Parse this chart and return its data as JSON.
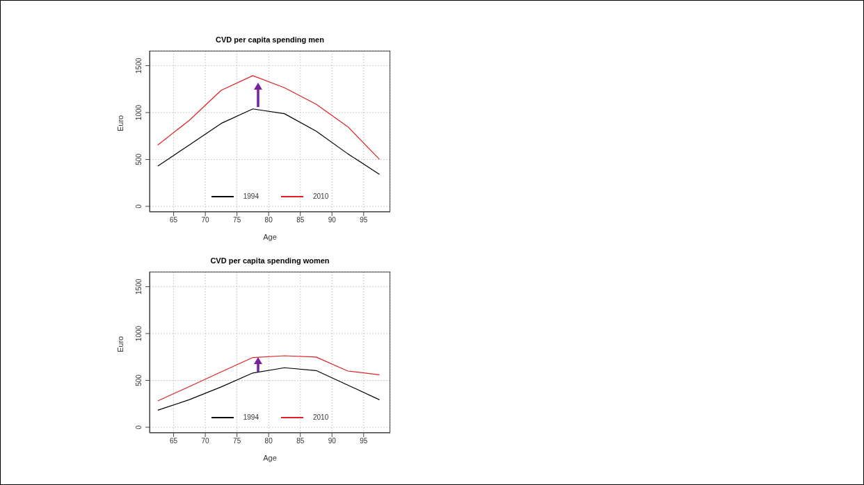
{
  "chart_data": [
    {
      "type": "line",
      "title": "CVD per capita spending men",
      "xlabel": "Age",
      "ylabel": "Euro",
      "x": [
        62.5,
        67.5,
        72.5,
        77.5,
        82.5,
        87.5,
        92.5,
        97.5
      ],
      "series": [
        {
          "name": "1994",
          "color": "#000000",
          "values": [
            430,
            655,
            884,
            1039,
            988,
            802,
            560,
            341
          ]
        },
        {
          "name": "2010",
          "color": "#df2020",
          "values": [
            654,
            919,
            1237,
            1394,
            1265,
            1089,
            849,
            501
          ]
        }
      ],
      "xlim": [
        61.2,
        99.2
      ],
      "xticks": [
        65,
        70,
        75,
        80,
        85,
        90,
        95
      ],
      "ylim": [
        -60,
        1660
      ],
      "yticks": [
        0,
        500,
        1000,
        1500
      ],
      "grid": true,
      "legend": "bottom",
      "marker": "none",
      "line_style": "solid"
    },
    {
      "type": "line",
      "title": "CVD per capita spending women",
      "xlabel": "Age",
      "ylabel": "Euro",
      "x": [
        62.5,
        67.5,
        72.5,
        77.5,
        82.5,
        87.5,
        92.5,
        97.5
      ],
      "series": [
        {
          "name": "1994",
          "color": "#000000",
          "values": [
            182,
            295,
            430,
            579,
            635,
            605,
            450,
            293
          ]
        },
        {
          "name": "2010",
          "color": "#df2020",
          "values": [
            281,
            435,
            590,
            744,
            763,
            749,
            600,
            560
          ]
        }
      ],
      "xlim": [
        61.2,
        99.2
      ],
      "xticks": [
        65,
        70,
        75,
        80,
        85,
        90,
        95
      ],
      "ylim": [
        -60,
        1660
      ],
      "yticks": [
        0,
        500,
        1000,
        1500
      ],
      "grid": true,
      "legend": "bottom",
      "marker": "none",
      "line_style": "solid"
    }
  ]
}
